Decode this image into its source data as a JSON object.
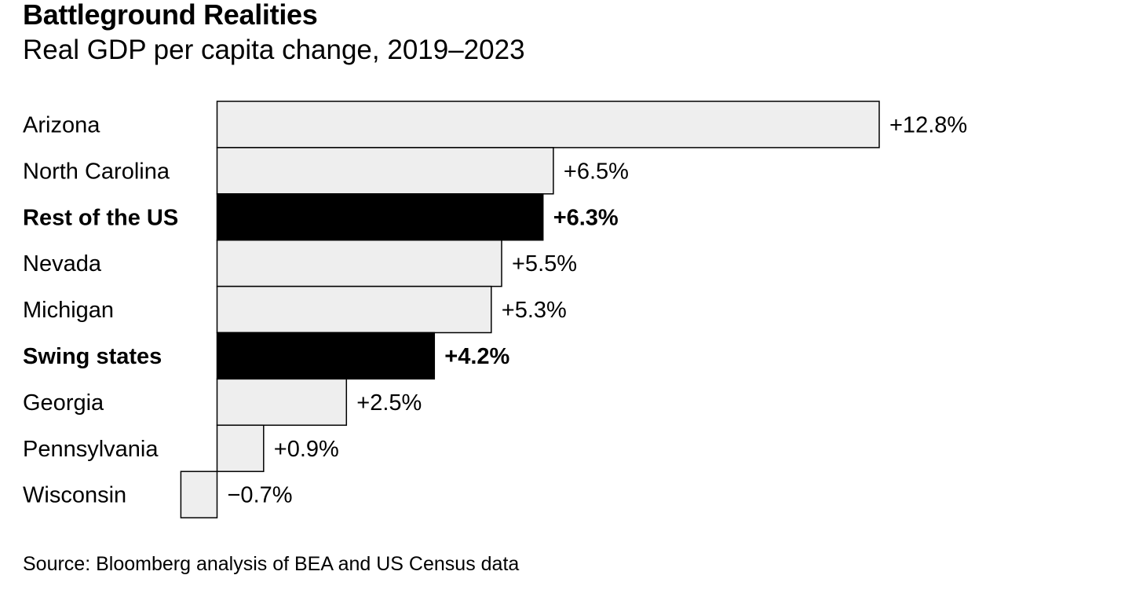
{
  "title": "Battleground Realities",
  "subtitle": "Real GDP per capita change, 2019–2023",
  "source": "Source: Bloomberg analysis of BEA and US Census data",
  "colors": {
    "bar": "#eeeeee",
    "highlight_bar": "#000000",
    "stroke": "#000000",
    "text": "#000000"
  },
  "chart_data": {
    "type": "bar",
    "orientation": "horizontal",
    "categories": [
      "Arizona",
      "North Carolina",
      "Rest of the US",
      "Nevada",
      "Michigan",
      "Swing states",
      "Georgia",
      "Pennsylvania",
      "Wisconsin"
    ],
    "values": [
      12.8,
      6.5,
      6.3,
      5.5,
      5.3,
      4.2,
      2.5,
      0.9,
      -0.7
    ],
    "labels": [
      "+12.8%",
      "+6.5%",
      "+6.3%",
      "+5.5%",
      "+5.3%",
      "+4.2%",
      "+2.5%",
      "+0.9%",
      "−0.7%"
    ],
    "highlighted": [
      "Rest of the US",
      "Swing states"
    ],
    "grid": false,
    "title": "Battleground Realities",
    "xlabel": "",
    "ylabel": ""
  }
}
